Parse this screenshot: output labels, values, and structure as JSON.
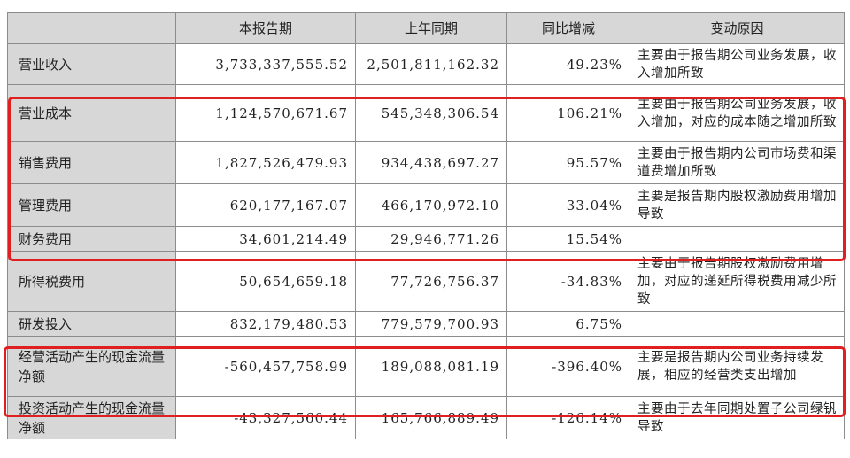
{
  "headers": [
    "",
    "本报告期",
    "上年同期",
    "同比增减",
    "变动原因"
  ],
  "rows": [
    {
      "label": "营业收入",
      "current": "3,733,337,555.52",
      "prior": "2,501,811,162.32",
      "change": "49.23%",
      "reason": "主要由于报告期公司业务发展，收入增加所致"
    },
    {
      "label": "营业成本",
      "current": "1,124,570,671.67",
      "prior": "545,348,306.54",
      "change": "106.21%",
      "reason": "主要由于报告期公司业务发展，收入增加，对应的成本随之增加所致"
    },
    {
      "label": "销售费用",
      "current": "1,827,526,479.93",
      "prior": "934,438,697.27",
      "change": "95.57%",
      "reason": "主要由于报告期内公司市场费和渠道费增加所致"
    },
    {
      "label": "管理费用",
      "current": "620,177,167.07",
      "prior": "466,170,972.10",
      "change": "33.04%",
      "reason": "主要是报告期内股权激励费用增加导致"
    },
    {
      "label": "财务费用",
      "current": "34,601,214.49",
      "prior": "29,946,771.26",
      "change": "15.54%",
      "reason": ""
    },
    {
      "label": "所得税费用",
      "current": "50,654,659.18",
      "prior": "77,726,756.37",
      "change": "-34.83%",
      "reason": "主要由于报告期股权激励费用增加，对应的递延所得税费用减少所致"
    },
    {
      "label": "研发投入",
      "current": "832,179,480.53",
      "prior": "779,579,700.93",
      "change": "6.75%",
      "reason": ""
    },
    {
      "label": "经营活动产生的现金流量净额",
      "current": "-560,457,758.99",
      "prior": "189,088,081.19",
      "change": "-396.40%",
      "reason": "主要是报告期内公司业务持续发展，相应的经营类支出增加"
    },
    {
      "label": "投资活动产生的现金流量净额",
      "current": "-43,327,560.44",
      "prior": "165,766,889.49",
      "change": "-126.14%",
      "reason": "主要由于去年同期处置子公司绿钒导致"
    }
  ],
  "highlight_color": "#e02020"
}
